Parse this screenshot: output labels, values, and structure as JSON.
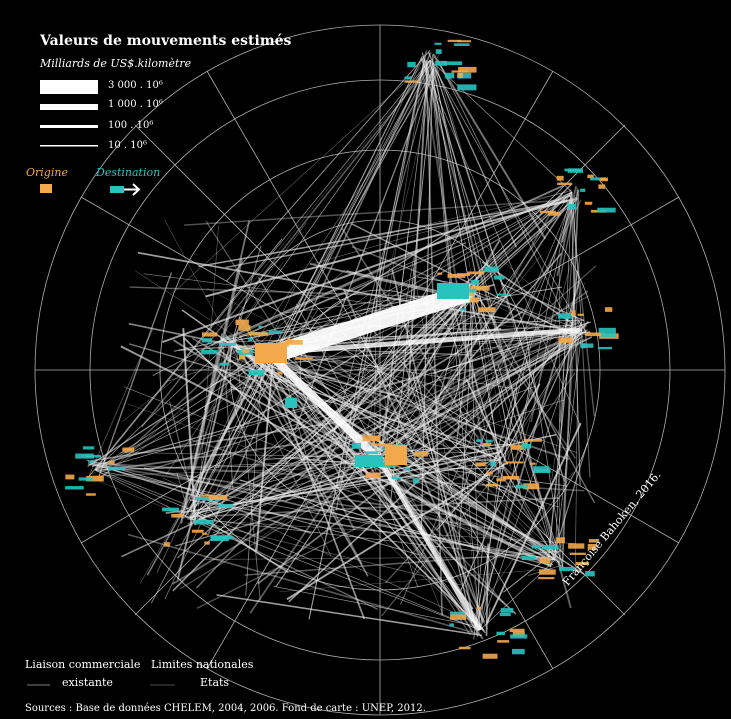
{
  "legend": {
    "title": "Valeurs de mouvements estimés",
    "unit": "Milliards de US$.kilomètre",
    "scale": [
      {
        "label": "3 000 . 10⁶",
        "value": 3000
      },
      {
        "label": "1 000 . 10⁶",
        "value": 1000
      },
      {
        "label": "100 . 10⁶",
        "value": 100
      },
      {
        "label": "10 . 10⁶",
        "value": 10
      }
    ],
    "origin_label": "Origine",
    "destination_label": "Destination",
    "origin_color": "#f3a94b",
    "destination_color": "#29c2bf"
  },
  "bottom_legend": {
    "trade_link_line1": "Liaison commerciale",
    "trade_link_line2": "existante",
    "borders_line1": "Limites nationales",
    "borders_line2": "Etats"
  },
  "credit": "Françoise Bahoken, 2016.",
  "sources": "Sources : Base de données CHELEM, 2004, 2006. Fond de carte : UNEP, 2012.",
  "colors": {
    "background": "#000000",
    "flow": "#e6e6e6",
    "graticule": "#d0d0d0"
  }
}
